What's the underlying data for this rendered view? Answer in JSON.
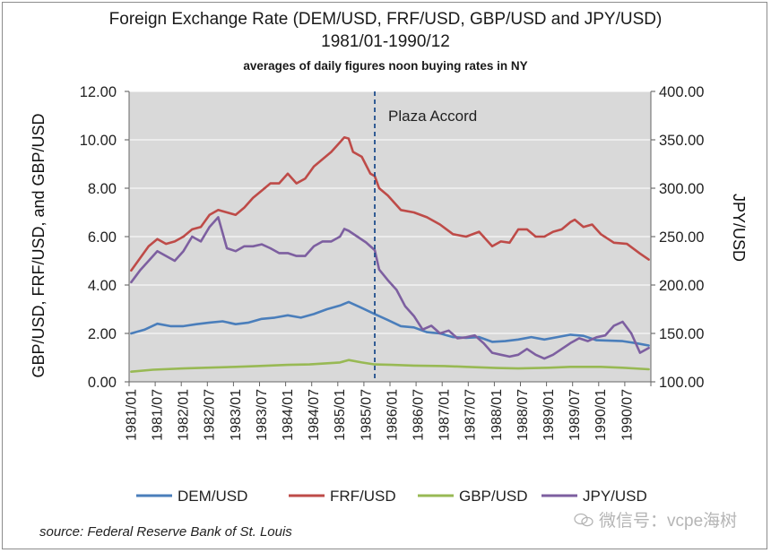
{
  "title": "Foreign Exchange Rate (DEM/USD, FRF/USD,  GBP/USD and JPY/USD)",
  "subtitle": "1981/01-1990/12",
  "note": "averages of daily figures noon buying rates in NY",
  "source": "source: Federal Reserve Bank of St. Louis",
  "watermark": "微信号：vcpe海树",
  "chart_data": {
    "type": "line",
    "x_start": "1981/01",
    "x_end": "1990/12",
    "x_tick_labels": [
      "1981/01",
      "1981/07",
      "1982/01",
      "1982/07",
      "1983/01",
      "1983/07",
      "1984/01",
      "1984/07",
      "1985/01",
      "1985/07",
      "1986/01",
      "1986/07",
      "1987/01",
      "1987/07",
      "1988/01",
      "1988/07",
      "1989/01",
      "1989/07",
      "1990/01",
      "1990/07"
    ],
    "left_axis": {
      "label": "GBP/USD, FRF/USD,  and GBP/USD",
      "ylim": [
        0,
        12
      ],
      "tick_labels": [
        "0.00",
        "2.00",
        "4.00",
        "6.00",
        "8.00",
        "10.00",
        "12.00"
      ]
    },
    "right_axis": {
      "label": "JPY/USD",
      "ylim": [
        100,
        400
      ],
      "tick_labels": [
        "100.00",
        "150.00",
        "200.00",
        "250.00",
        "300.00",
        "350.00",
        "400.00"
      ]
    },
    "grid": true,
    "legend_position": "bottom",
    "annotation": {
      "text": "Plaza Accord",
      "x": "1985/09"
    },
    "series": [
      {
        "name": "DEM/USD",
        "axis": "left",
        "color": "#4a7ebb",
        "x": [
          "1981/01",
          "1981/04",
          "1981/07",
          "1981/10",
          "1982/01",
          "1982/04",
          "1982/07",
          "1982/10",
          "1983/01",
          "1983/04",
          "1983/07",
          "1983/10",
          "1984/01",
          "1984/04",
          "1984/07",
          "1984/10",
          "1985/01",
          "1985/03",
          "1985/06",
          "1985/09",
          "1985/12",
          "1986/03",
          "1986/06",
          "1986/09",
          "1986/12",
          "1987/03",
          "1987/06",
          "1987/09",
          "1987/12",
          "1988/03",
          "1988/06",
          "1988/09",
          "1988/12",
          "1989/03",
          "1989/06",
          "1989/09",
          "1989/12",
          "1990/03",
          "1990/06",
          "1990/09",
          "1990/12"
        ],
        "values": [
          2.0,
          2.15,
          2.4,
          2.3,
          2.3,
          2.38,
          2.45,
          2.5,
          2.38,
          2.45,
          2.6,
          2.65,
          2.75,
          2.65,
          2.8,
          3.0,
          3.15,
          3.3,
          3.05,
          2.8,
          2.55,
          2.3,
          2.25,
          2.05,
          2.0,
          1.85,
          1.82,
          1.85,
          1.65,
          1.68,
          1.75,
          1.85,
          1.75,
          1.85,
          1.95,
          1.9,
          1.72,
          1.7,
          1.68,
          1.6,
          1.5
        ]
      },
      {
        "name": "FRF/USD",
        "axis": "left",
        "color": "#be4b48",
        "x": [
          "1981/01",
          "1981/03",
          "1981/05",
          "1981/07",
          "1981/09",
          "1981/11",
          "1982/01",
          "1982/03",
          "1982/05",
          "1982/07",
          "1982/09",
          "1982/11",
          "1983/01",
          "1983/03",
          "1983/05",
          "1983/07",
          "1983/09",
          "1983/11",
          "1984/01",
          "1984/03",
          "1984/05",
          "1984/07",
          "1984/09",
          "1984/11",
          "1985/01",
          "1985/02",
          "1985/03",
          "1985/04",
          "1985/06",
          "1985/08",
          "1985/09",
          "1985/10",
          "1985/12",
          "1986/03",
          "1986/06",
          "1986/09",
          "1986/12",
          "1987/03",
          "1987/06",
          "1987/09",
          "1987/12",
          "1988/02",
          "1988/04",
          "1988/06",
          "1988/08",
          "1988/10",
          "1988/12",
          "1989/02",
          "1989/04",
          "1989/06",
          "1989/07",
          "1989/09",
          "1989/11",
          "1990/01",
          "1990/04",
          "1990/07",
          "1990/10",
          "1990/12"
        ],
        "values": [
          4.6,
          5.1,
          5.6,
          5.9,
          5.7,
          5.8,
          6.0,
          6.3,
          6.4,
          6.9,
          7.1,
          7.0,
          6.9,
          7.2,
          7.6,
          7.9,
          8.2,
          8.2,
          8.6,
          8.2,
          8.4,
          8.9,
          9.2,
          9.5,
          9.9,
          10.1,
          10.05,
          9.5,
          9.3,
          8.6,
          8.5,
          8.0,
          7.7,
          7.1,
          7.0,
          6.8,
          6.5,
          6.1,
          6.0,
          6.2,
          5.6,
          5.8,
          5.75,
          6.3,
          6.3,
          6.0,
          6.0,
          6.2,
          6.3,
          6.6,
          6.7,
          6.4,
          6.5,
          6.1,
          5.75,
          5.7,
          5.3,
          5.05
        ]
      },
      {
        "name": "GBP/USD",
        "axis": "left",
        "color": "#98b954",
        "x": [
          "1981/01",
          "1981/06",
          "1982/01",
          "1982/06",
          "1983/01",
          "1983/06",
          "1984/01",
          "1984/06",
          "1985/01",
          "1985/03",
          "1985/06",
          "1985/09",
          "1986/01",
          "1986/06",
          "1987/01",
          "1987/06",
          "1988/01",
          "1988/06",
          "1989/01",
          "1989/06",
          "1990/01",
          "1990/06",
          "1990/12"
        ],
        "values": [
          0.42,
          0.5,
          0.55,
          0.58,
          0.62,
          0.65,
          0.7,
          0.72,
          0.8,
          0.9,
          0.8,
          0.72,
          0.7,
          0.67,
          0.65,
          0.62,
          0.57,
          0.55,
          0.58,
          0.62,
          0.62,
          0.58,
          0.52
        ]
      },
      {
        "name": "JPY/USD",
        "axis": "right",
        "color": "#7d5fa0",
        "x": [
          "1981/01",
          "1981/03",
          "1981/05",
          "1981/07",
          "1981/09",
          "1981/11",
          "1982/01",
          "1982/03",
          "1982/05",
          "1982/07",
          "1982/09",
          "1982/11",
          "1983/01",
          "1983/03",
          "1983/05",
          "1983/07",
          "1983/09",
          "1983/11",
          "1984/01",
          "1984/03",
          "1984/05",
          "1984/07",
          "1984/09",
          "1984/11",
          "1985/01",
          "1985/02",
          "1985/03",
          "1985/05",
          "1985/07",
          "1985/09",
          "1985/10",
          "1985/12",
          "1986/02",
          "1986/04",
          "1986/06",
          "1986/08",
          "1986/10",
          "1986/12",
          "1987/02",
          "1987/04",
          "1987/06",
          "1987/08",
          "1987/10",
          "1987/12",
          "1988/02",
          "1988/04",
          "1988/06",
          "1988/08",
          "1988/10",
          "1988/12",
          "1989/02",
          "1989/04",
          "1989/06",
          "1989/08",
          "1989/10",
          "1989/12",
          "1990/02",
          "1990/04",
          "1990/06",
          "1990/08",
          "1990/10",
          "1990/12"
        ],
        "values": [
          203,
          215,
          225,
          235,
          230,
          225,
          235,
          250,
          245,
          260,
          270,
          238,
          235,
          240,
          240,
          242,
          238,
          233,
          233,
          230,
          230,
          240,
          245,
          245,
          250,
          258,
          256,
          250,
          244,
          236,
          216,
          205,
          195,
          178,
          168,
          154,
          158,
          150,
          153,
          145,
          146,
          148,
          140,
          130,
          128,
          126,
          128,
          134,
          128,
          124,
          128,
          134,
          140,
          145,
          142,
          146,
          148,
          158,
          162,
          150,
          130,
          135
        ]
      }
    ]
  }
}
